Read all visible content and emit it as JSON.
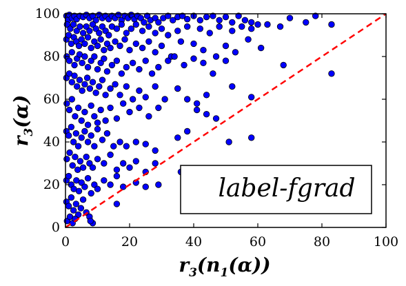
{
  "chart_data": {
    "type": "scatter",
    "title": "",
    "xlabel": {
      "base": "r",
      "sub": "3",
      "open": "(",
      "inner": "n",
      "inner_sub": "1",
      "arg": "(α))"
    },
    "ylabel": {
      "base": "r",
      "sub": "3",
      "arg": "(α)"
    },
    "xlim": [
      0,
      100
    ],
    "ylim": [
      0,
      100
    ],
    "xticks": [
      "0",
      "20",
      "40",
      "60",
      "80",
      "100"
    ],
    "yticks": [
      "0",
      "20",
      "40",
      "60",
      "80",
      "100"
    ],
    "grid": false,
    "annotation": "label-fgrad",
    "reference_line": {
      "x": [
        0,
        100
      ],
      "y": [
        0,
        100
      ],
      "style": "dashed",
      "color": "#ff0000"
    },
    "point_color": "#0000ff",
    "series": [
      {
        "points": [
          [
            0.3,
            99
          ],
          [
            0.8,
            97
          ],
          [
            1.2,
            99.5
          ],
          [
            2,
            98
          ],
          [
            2.8,
            99
          ],
          [
            3.5,
            97.5
          ],
          [
            4.5,
            99
          ],
          [
            5.5,
            98.5
          ],
          [
            6.5,
            99.5
          ],
          [
            7.5,
            98
          ],
          [
            8.5,
            99
          ],
          [
            9.5,
            97
          ],
          [
            10.5,
            99.5
          ],
          [
            11.5,
            98
          ],
          [
            12.5,
            99
          ],
          [
            13.5,
            97.5
          ],
          [
            14.5,
            99
          ],
          [
            15.5,
            98
          ],
          [
            16.5,
            99.5
          ],
          [
            17.5,
            97
          ],
          [
            18.5,
            99
          ],
          [
            19.5,
            98
          ],
          [
            20.5,
            99.5
          ],
          [
            21.5,
            97.5
          ],
          [
            22.5,
            99
          ],
          [
            23.5,
            98
          ],
          [
            24.5,
            96
          ],
          [
            25.5,
            99
          ],
          [
            26.5,
            97
          ],
          [
            28,
            98
          ],
          [
            29,
            96
          ],
          [
            30.5,
            98
          ],
          [
            32,
            99
          ],
          [
            33.5,
            97
          ],
          [
            35,
            98.5
          ],
          [
            36.5,
            99
          ],
          [
            38,
            97.5
          ],
          [
            40,
            99
          ],
          [
            42,
            97
          ],
          [
            44,
            98.5
          ],
          [
            46,
            99
          ],
          [
            48,
            97
          ],
          [
            50,
            98.5
          ],
          [
            52,
            96
          ],
          [
            54,
            99
          ],
          [
            56,
            97
          ],
          [
            58,
            96
          ],
          [
            60,
            95
          ],
          [
            63,
            95
          ],
          [
            67,
            94
          ],
          [
            70,
            98
          ],
          [
            75,
            96
          ],
          [
            78,
            99
          ],
          [
            83,
            95
          ],
          [
            0.5,
            95
          ],
          [
            1.5,
            93
          ],
          [
            2.5,
            95
          ],
          [
            3.5,
            92
          ],
          [
            4.5,
            94
          ],
          [
            5.5,
            91
          ],
          [
            6.5,
            94
          ],
          [
            7.5,
            92
          ],
          [
            8.5,
            95
          ],
          [
            9.5,
            93
          ],
          [
            10.5,
            91
          ],
          [
            11.5,
            94
          ],
          [
            12.5,
            92
          ],
          [
            13.5,
            90
          ],
          [
            14.5,
            94
          ],
          [
            16,
            93
          ],
          [
            17.5,
            95
          ],
          [
            19,
            91
          ],
          [
            20.5,
            93
          ],
          [
            22,
            95
          ],
          [
            24,
            92
          ],
          [
            26,
            94
          ],
          [
            28,
            91
          ],
          [
            30,
            93
          ],
          [
            32,
            90
          ],
          [
            35,
            92
          ],
          [
            38,
            94
          ],
          [
            42,
            93
          ],
          [
            45,
            91
          ],
          [
            48,
            94
          ],
          [
            52,
            92
          ],
          [
            55,
            94
          ],
          [
            58,
            93
          ],
          [
            0.3,
            88
          ],
          [
            1,
            90
          ],
          [
            1.8,
            86
          ],
          [
            2.6,
            89
          ],
          [
            3.4,
            87
          ],
          [
            4.2,
            85
          ],
          [
            5,
            88
          ],
          [
            6,
            86
          ],
          [
            7,
            89
          ],
          [
            8,
            84
          ],
          [
            9,
            87
          ],
          [
            10,
            85
          ],
          [
            11,
            88
          ],
          [
            12,
            83
          ],
          [
            13,
            86
          ],
          [
            14,
            84
          ],
          [
            15.5,
            87
          ],
          [
            17,
            85
          ],
          [
            18.5,
            88
          ],
          [
            20,
            83
          ],
          [
            22,
            86
          ],
          [
            24,
            84
          ],
          [
            26,
            87
          ],
          [
            28,
            82
          ],
          [
            30,
            85
          ],
          [
            33,
            80
          ],
          [
            36,
            87
          ],
          [
            40,
            86
          ],
          [
            43,
            83
          ],
          [
            47,
            80
          ],
          [
            50,
            85
          ],
          [
            53,
            82
          ],
          [
            57,
            88
          ],
          [
            61,
            84
          ],
          [
            0.4,
            80
          ],
          [
            1.2,
            78
          ],
          [
            2,
            82
          ],
          [
            2.8,
            76
          ],
          [
            3.6,
            79
          ],
          [
            4.4,
            81
          ],
          [
            5.2,
            77
          ],
          [
            6,
            80
          ],
          [
            7,
            75
          ],
          [
            8,
            78
          ],
          [
            9,
            80
          ],
          [
            10,
            74
          ],
          [
            11,
            77
          ],
          [
            12,
            79
          ],
          [
            13,
            73
          ],
          [
            14.5,
            76
          ],
          [
            16,
            78
          ],
          [
            17.5,
            72
          ],
          [
            19,
            75
          ],
          [
            21,
            77
          ],
          [
            23,
            74
          ],
          [
            25,
            78
          ],
          [
            27,
            72
          ],
          [
            29,
            75
          ],
          [
            32,
            78
          ],
          [
            34,
            80
          ],
          [
            37,
            76
          ],
          [
            40,
            79
          ],
          [
            43,
            77
          ],
          [
            46,
            72
          ],
          [
            50,
            78
          ],
          [
            68,
            76
          ],
          [
            0.3,
            70
          ],
          [
            1.2,
            72
          ],
          [
            2,
            68
          ],
          [
            2.8,
            71
          ],
          [
            3.6,
            66
          ],
          [
            4.4,
            69
          ],
          [
            5.2,
            64
          ],
          [
            6,
            67
          ],
          [
            6.8,
            70
          ],
          [
            7.6,
            65
          ],
          [
            8.5,
            68
          ],
          [
            9.5,
            63
          ],
          [
            10.5,
            66
          ],
          [
            11.5,
            69
          ],
          [
            12.5,
            62
          ],
          [
            14,
            65
          ],
          [
            15.5,
            67
          ],
          [
            17,
            62
          ],
          [
            19,
            66
          ],
          [
            21,
            60
          ],
          [
            23,
            64
          ],
          [
            25,
            61
          ],
          [
            28,
            66
          ],
          [
            31,
            60
          ],
          [
            35,
            65
          ],
          [
            38,
            60
          ],
          [
            41,
            58
          ],
          [
            44,
            62
          ],
          [
            52,
            66
          ],
          [
            83,
            72
          ],
          [
            0.4,
            58
          ],
          [
            1.2,
            55
          ],
          [
            2,
            60
          ],
          [
            3,
            52
          ],
          [
            4,
            56
          ],
          [
            5,
            50
          ],
          [
            6,
            54
          ],
          [
            7,
            48
          ],
          [
            8,
            57
          ],
          [
            9,
            52
          ],
          [
            10,
            49
          ],
          [
            11,
            55
          ],
          [
            12.5,
            50
          ],
          [
            14,
            56
          ],
          [
            16,
            51
          ],
          [
            18,
            58
          ],
          [
            20,
            54
          ],
          [
            23,
            56
          ],
          [
            26,
            52
          ],
          [
            29,
            56
          ],
          [
            41,
            55
          ],
          [
            44,
            53
          ],
          [
            47,
            51
          ],
          [
            58,
            61
          ],
          [
            0.3,
            45
          ],
          [
            1,
            43
          ],
          [
            1.8,
            47
          ],
          [
            2.5,
            40
          ],
          [
            3.3,
            44
          ],
          [
            4,
            38
          ],
          [
            5,
            42
          ],
          [
            6,
            45
          ],
          [
            7,
            40
          ],
          [
            8,
            43
          ],
          [
            9,
            38
          ],
          [
            10,
            46
          ],
          [
            11.5,
            41
          ],
          [
            13,
            44
          ],
          [
            15,
            38
          ],
          [
            17,
            40
          ],
          [
            19,
            38
          ],
          [
            22,
            40
          ],
          [
            25,
            39
          ],
          [
            28,
            36
          ],
          [
            35,
            42
          ],
          [
            38,
            45
          ],
          [
            51,
            40
          ],
          [
            58,
            42
          ],
          [
            0.4,
            32
          ],
          [
            1.3,
            35
          ],
          [
            2.2,
            29
          ],
          [
            3,
            33
          ],
          [
            3.8,
            27
          ],
          [
            4.6,
            31
          ],
          [
            5.5,
            28
          ],
          [
            6.5,
            33
          ],
          [
            7.5,
            30
          ],
          [
            8.5,
            28
          ],
          [
            10,
            32
          ],
          [
            12,
            30
          ],
          [
            14,
            34
          ],
          [
            16,
            27
          ],
          [
            18,
            30
          ],
          [
            20,
            28
          ],
          [
            22,
            31
          ],
          [
            25,
            26
          ],
          [
            28,
            30
          ],
          [
            36,
            26
          ],
          [
            0.3,
            22
          ],
          [
            1,
            24
          ],
          [
            1.8,
            20
          ],
          [
            2.6,
            18
          ],
          [
            3.4,
            22
          ],
          [
            4.2,
            17
          ],
          [
            5,
            21
          ],
          [
            6,
            19
          ],
          [
            7,
            23
          ],
          [
            8,
            16
          ],
          [
            9,
            20
          ],
          [
            10,
            18
          ],
          [
            12,
            22
          ],
          [
            14,
            20
          ],
          [
            16,
            24
          ],
          [
            18,
            19
          ],
          [
            22,
            21
          ],
          [
            25,
            19
          ],
          [
            29,
            20
          ],
          [
            0.3,
            12
          ],
          [
            1,
            10
          ],
          [
            1.8,
            14
          ],
          [
            2.5,
            8
          ],
          [
            3.3,
            11
          ],
          [
            4,
            6
          ],
          [
            4.8,
            9
          ],
          [
            5.5,
            13
          ],
          [
            6.5,
            7
          ],
          [
            7.5,
            5
          ],
          [
            8.5,
            2
          ],
          [
            7.8,
            3
          ],
          [
            0.5,
            3
          ],
          [
            1.4,
            5
          ],
          [
            2.2,
            2
          ],
          [
            3,
            4
          ],
          [
            16,
            11
          ]
        ]
      }
    ]
  }
}
